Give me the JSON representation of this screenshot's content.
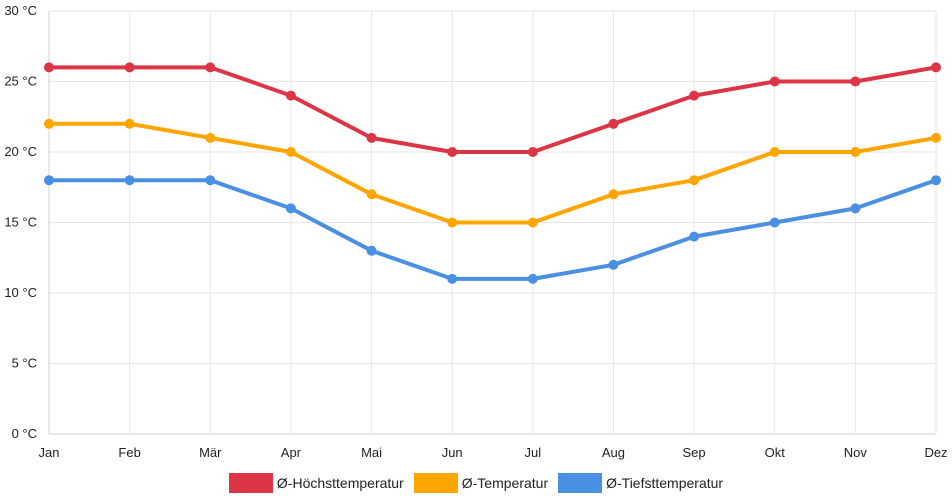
{
  "chart_data": {
    "type": "line",
    "title": "",
    "xlabel": "",
    "ylabel": "",
    "categories": [
      "Jan",
      "Feb",
      "Mär",
      "Apr",
      "Mai",
      "Jun",
      "Jul",
      "Aug",
      "Sep",
      "Okt",
      "Nov",
      "Dez"
    ],
    "ylim": [
      0,
      30
    ],
    "y_ticks": [
      0,
      5,
      10,
      15,
      20,
      25,
      30
    ],
    "y_tick_labels": [
      "0 °C",
      "5 °C",
      "10 °C",
      "15 °C",
      "20 °C",
      "25 °C",
      "30 °C"
    ],
    "grid": true,
    "legend_position": "bottom-center",
    "series": [
      {
        "name": "Ø-Höchsttemperatur",
        "color": "#dc3545",
        "values": [
          26,
          26,
          26,
          24,
          21,
          20,
          20,
          22,
          24,
          25,
          25,
          26
        ]
      },
      {
        "name": "Ø-Temperatur",
        "color": "#ffa500",
        "values": [
          22,
          22,
          21,
          20,
          17,
          15,
          15,
          17,
          18,
          20,
          20,
          21
        ]
      },
      {
        "name": "Ø-Tiefsttemperatur",
        "color": "#4a90e2",
        "values": [
          18,
          18,
          18,
          16,
          13,
          11,
          11,
          12,
          14,
          15,
          16,
          18
        ]
      }
    ]
  }
}
